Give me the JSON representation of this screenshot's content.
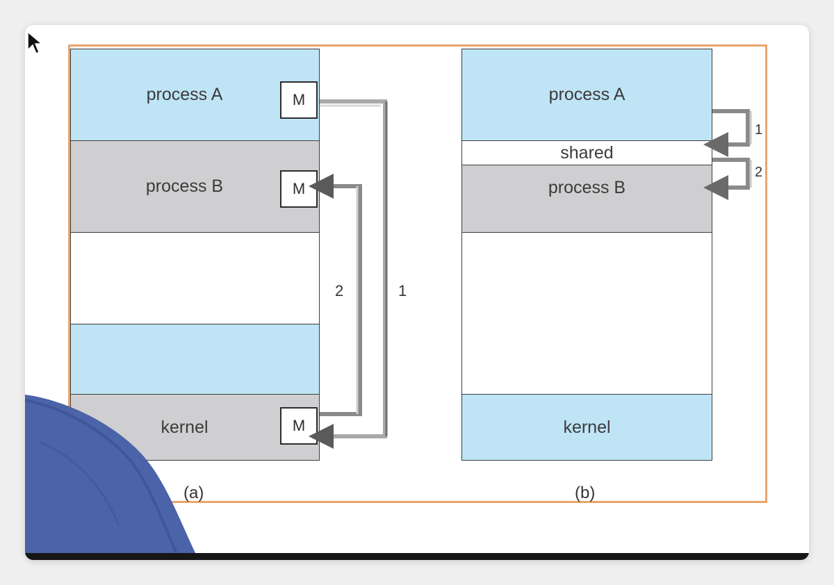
{
  "diagram": {
    "panel_a": {
      "caption": "(a)",
      "segments": [
        "process A",
        "process B",
        "",
        "",
        "kernel"
      ],
      "message_label": "M",
      "arrow_labels": [
        "1",
        "2"
      ]
    },
    "panel_b": {
      "caption": "(b)",
      "segments": [
        "process A",
        "shared",
        "process B",
        "",
        "kernel"
      ],
      "arrow_labels": [
        "1",
        "2"
      ]
    }
  },
  "colors": {
    "process_blue": "#bfe4f6",
    "process_gray": "#cfcfd1",
    "frame_border": "#e8a56b",
    "arrow_dark": "#5a5a5a",
    "arrow_light": "#b8b8b8"
  },
  "icons": [
    "mouse-pointer-icon"
  ]
}
